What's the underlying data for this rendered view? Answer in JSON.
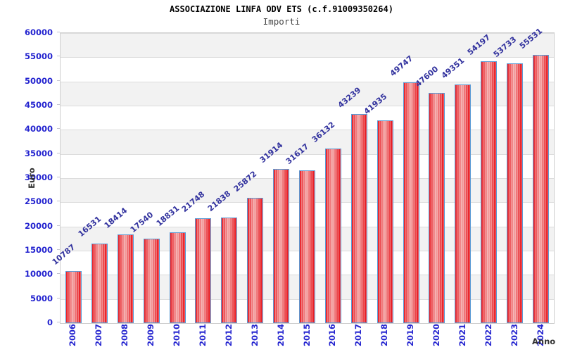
{
  "header": {
    "title": "ASSOCIAZIONE LINFA ODV ETS (c.f.91009350264)",
    "subtitle": "Importi"
  },
  "chart_data": {
    "type": "bar",
    "title": "ASSOCIAZIONE LINFA ODV ETS (c.f.91009350264)",
    "subtitle": "Importi",
    "xlabel": "Anno",
    "ylabel": "Euro",
    "categories": [
      "2006",
      "2007",
      "2008",
      "2009",
      "2010",
      "2011",
      "2012",
      "2013",
      "2014",
      "2015",
      "2016",
      "2017",
      "2018",
      "2019",
      "2020",
      "2021",
      "2022",
      "2023",
      "2024"
    ],
    "values": [
      10787,
      16531,
      18414,
      17540,
      18831,
      21748,
      21838,
      25872,
      31914,
      31617,
      36132,
      43239,
      41935,
      49747,
      47600,
      49351,
      54197,
      53733,
      55531
    ],
    "ylim": [
      0,
      60000
    ],
    "ytick_step": 5000,
    "grid": true,
    "legend": false,
    "banded_background": true,
    "colors": {
      "title": "#000000",
      "subtitle": "#4a4a4a",
      "tick_label": "#2323cf",
      "value_label": "#32329e",
      "axis_title": "#333333",
      "bar_fill": "#e81f26",
      "bar_highlight": "#f3a6a6",
      "bar_border": "#5b9bd5",
      "band_gray": "#f2f2f2",
      "gridline": "#dcdcdc"
    }
  }
}
